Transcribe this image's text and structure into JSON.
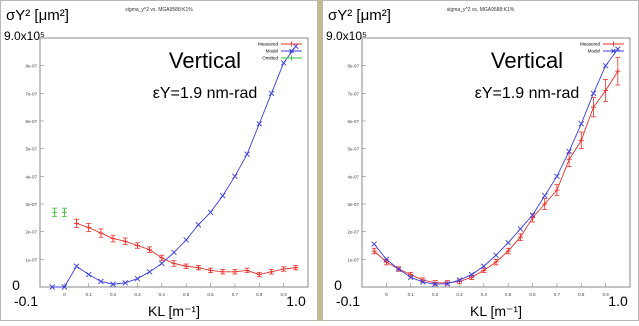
{
  "chart_data": [
    {
      "type": "line",
      "title": "sigma_y^2 vs. MGA9588:K1%",
      "overlay_title": "Vertical",
      "emittance_label": "εY=1.9 nm-rad",
      "ylabel": "σY² [μm²]",
      "y_top_label": "9.0x10⁵",
      "xlabel": "KL [m⁻¹]",
      "x_left_label": "-0.1",
      "x_right_label": "1.0",
      "y_zero_label": "0",
      "xlim": [
        -0.1,
        1.0
      ],
      "ylim": [
        0,
        9e-07
      ],
      "xticks": [
        0,
        0.1,
        0.2,
        0.3,
        0.4,
        0.5,
        0.6,
        0.7,
        0.8,
        0.9
      ],
      "xtick_labels": [
        "0",
        "0.1",
        "0.2",
        "0.3",
        "0.4",
        "0.5",
        "0.6",
        "0.7",
        "0.8",
        "0.9"
      ],
      "yticks": [
        1e-07,
        2e-07,
        3e-07,
        4e-07,
        5e-07,
        6e-07,
        7e-07,
        8e-07
      ],
      "ytick_labels": [
        "1e-07",
        "2e-07",
        "3e-07",
        "4e-07",
        "5e-07",
        "6e-07",
        "7e-07",
        "8e-07"
      ],
      "legend": "top-right",
      "series": [
        {
          "name": "Measured",
          "color": "#e8322a",
          "marker": "plus",
          "x": [
            0.05,
            0.1,
            0.15,
            0.2,
            0.25,
            0.3,
            0.35,
            0.4,
            0.45,
            0.5,
            0.55,
            0.6,
            0.65,
            0.7,
            0.75,
            0.8,
            0.85,
            0.9,
            0.95
          ],
          "y": [
            2.3e-07,
            2.15e-07,
            1.95e-07,
            1.75e-07,
            1.65e-07,
            1.5e-07,
            1.35e-07,
            1.05e-07,
            8.5e-08,
            7.5e-08,
            7e-08,
            6e-08,
            5.5e-08,
            5.5e-08,
            6e-08,
            4.5e-08,
            5.5e-08,
            6.5e-08,
            7e-08
          ],
          "error": [
            1.5e-08,
            1.5e-08,
            1.5e-08,
            1.2e-08,
            1.2e-08,
            1e-08,
            1e-08,
            1e-08,
            1e-08,
            8e-09,
            8e-09,
            8e-09,
            8e-09,
            8e-09,
            8e-09,
            8e-09,
            8e-09,
            8e-09,
            8e-09
          ]
        },
        {
          "name": "Model",
          "color": "#3b3fe0",
          "marker": "x",
          "x": [
            -0.05,
            0.0,
            0.05,
            0.1,
            0.15,
            0.2,
            0.25,
            0.3,
            0.35,
            0.4,
            0.45,
            0.5,
            0.55,
            0.6,
            0.65,
            0.7,
            0.75,
            0.8,
            0.85,
            0.9,
            0.95
          ],
          "y": [
            0,
            0,
            7.5e-08,
            4.5e-08,
            2e-08,
            1e-08,
            1.5e-08,
            3e-08,
            5.5e-08,
            8.5e-08,
            1.25e-07,
            1.7e-07,
            2.25e-07,
            2.7e-07,
            3.3e-07,
            4e-07,
            4.8e-07,
            5.9e-07,
            7e-07,
            8.1e-07,
            8.7e-07
          ]
        },
        {
          "name": "Omitted",
          "color": "#35c437",
          "marker": "plus",
          "x": [
            -0.04,
            0.0
          ],
          "y": [
            2.7e-07,
            2.7e-07
          ],
          "error": [
            1.5e-08,
            1.5e-08
          ]
        }
      ]
    },
    {
      "type": "line",
      "title": "sigma_y^2 vs. MGA9588:K1%",
      "overlay_title": "Vertical",
      "emittance_label": "εY=1.9 nm-rad",
      "ylabel": "σY² [μm²]",
      "y_top_label": "9.0x10⁵",
      "xlabel": "KL [m⁻¹]",
      "x_left_label": "-0.1",
      "x_right_label": "1.0",
      "y_zero_label": "0",
      "xlim": [
        -0.1,
        1.0
      ],
      "ylim": [
        0,
        9e-07
      ],
      "xticks": [
        0,
        0.1,
        0.2,
        0.3,
        0.4,
        0.5,
        0.6,
        0.7,
        0.8,
        0.9
      ],
      "xtick_labels": [
        "0",
        "0.1",
        "0.2",
        "0.3",
        "0.4",
        "0.5",
        "0.6",
        "0.7",
        "0.8",
        "0.9"
      ],
      "yticks": [
        1e-07,
        2e-07,
        3e-07,
        4e-07,
        5e-07,
        6e-07,
        7e-07,
        8e-07
      ],
      "ytick_labels": [
        "1e-07",
        "2e-07",
        "3e-07",
        "4e-07",
        "5e-07",
        "6e-07",
        "7e-07",
        "8e-07"
      ],
      "legend": "top-right",
      "series": [
        {
          "name": "Measured",
          "color": "#e8322a",
          "marker": "plus",
          "x": [
            -0.05,
            0.0,
            0.05,
            0.1,
            0.15,
            0.2,
            0.25,
            0.3,
            0.35,
            0.4,
            0.45,
            0.5,
            0.55,
            0.6,
            0.65,
            0.7,
            0.75,
            0.8,
            0.85,
            0.9,
            0.95
          ],
          "y": [
            1.3e-07,
            9e-08,
            6.5e-08,
            4.5e-08,
            2.5e-08,
            1.5e-08,
            1.5e-08,
            2e-08,
            3.5e-08,
            6e-08,
            9e-08,
            1.3e-07,
            1.8e-07,
            2.5e-07,
            3e-07,
            3.5e-07,
            4.6e-07,
            5.3e-07,
            6.5e-07,
            7.1e-07,
            7.8e-07
          ],
          "error": [
            1e-08,
            1e-08,
            8e-09,
            8e-09,
            8e-09,
            8e-09,
            8e-09,
            8e-09,
            8e-09,
            8e-09,
            1e-08,
            1e-08,
            1.2e-08,
            1.5e-08,
            2e-08,
            2e-08,
            2.5e-08,
            3e-08,
            3.5e-08,
            4e-08,
            5e-08
          ]
        },
        {
          "name": "Model",
          "color": "#3b3fe0",
          "marker": "x",
          "x": [
            -0.05,
            0.0,
            0.05,
            0.1,
            0.15,
            0.2,
            0.25,
            0.3,
            0.35,
            0.4,
            0.45,
            0.5,
            0.55,
            0.6,
            0.65,
            0.7,
            0.75,
            0.8,
            0.85,
            0.9,
            0.95
          ],
          "y": [
            1.55e-07,
            1e-07,
            6.5e-08,
            3.5e-08,
            1.8e-08,
            1e-08,
            1.2e-08,
            2.5e-08,
            4.5e-08,
            7.5e-08,
            1.15e-07,
            1.6e-07,
            2.1e-07,
            2.6e-07,
            3.3e-07,
            4e-07,
            4.9e-07,
            5.9e-07,
            7e-07,
            8e-07,
            8.6e-07
          ]
        }
      ]
    }
  ]
}
